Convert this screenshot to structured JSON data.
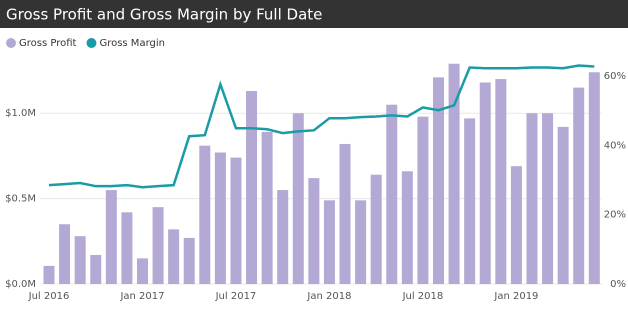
{
  "chart_data": {
    "type": "combo",
    "title": "Gross Profit and Gross Margin by Full Date",
    "categories": [
      "Jul 2016",
      null,
      null,
      null,
      null,
      null,
      "Jan 2017",
      null,
      null,
      null,
      null,
      null,
      "Jul 2017",
      null,
      null,
      null,
      null,
      null,
      "Jan 2018",
      null,
      null,
      null,
      null,
      null,
      "Jul 2018",
      null,
      null,
      null,
      null,
      null,
      "Jan 2019",
      null,
      null,
      null,
      null,
      null
    ],
    "series": [
      {
        "name": "Gross Profit",
        "type": "bar",
        "axis": "y",
        "color": "#b3a9d4",
        "values": [
          106000,
          350000,
          280000,
          170000,
          550000,
          420000,
          150000,
          450000,
          320000,
          270000,
          810000,
          770000,
          740000,
          1130000,
          890000,
          550000,
          1000000,
          620000,
          490000,
          820000,
          490000,
          640000,
          1050000,
          660000,
          980000,
          1210000,
          1290000,
          970000,
          1180000,
          1200000,
          690000,
          1000000,
          1000000,
          920000,
          1150000,
          1240000
        ]
      },
      {
        "name": "Gross Margin",
        "type": "line",
        "axis": "y2",
        "color": "#1a9ba6",
        "values": [
          28.5,
          28.8,
          29.1,
          28.2,
          28.2,
          28.5,
          27.9,
          28.2,
          28.5,
          42.6,
          42.9,
          57.6,
          44.9,
          44.9,
          44.6,
          43.5,
          44.0,
          44.3,
          47.8,
          47.8,
          48.1,
          48.3,
          48.6,
          48.3,
          50.9,
          50.1,
          51.5,
          62.4,
          62.2,
          62.2,
          62.2,
          62.4,
          62.4,
          62.2,
          63.0,
          62.7
        ]
      }
    ],
    "ylim": [
      0,
      1300000
    ],
    "yticks": [
      {
        "value": 0,
        "label": "$0.0M"
      },
      {
        "value": 500000,
        "label": "$0.5M"
      },
      {
        "value": 1000000,
        "label": "$1.0M"
      }
    ],
    "y2lim": [
      0,
      64
    ],
    "y2ticks": [
      {
        "value": 0,
        "label": "0%"
      },
      {
        "value": 20,
        "label": "20%"
      },
      {
        "value": 40,
        "label": "40%"
      },
      {
        "value": 60,
        "label": "60%"
      }
    ],
    "grid": true
  }
}
